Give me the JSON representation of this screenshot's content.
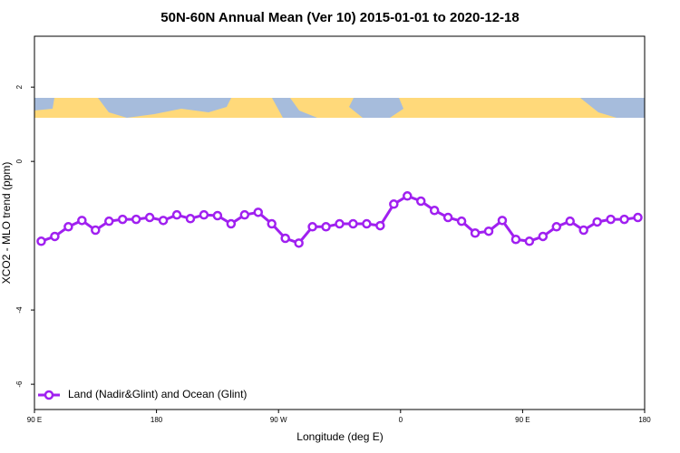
{
  "chart_data": {
    "type": "line",
    "title": "50N-60N Annual Mean (Ver 10)   2015-01-01 to 2020-12-18",
    "x_label": "Longitude (deg E)",
    "y_label": "XCO2 - MLO trend (ppm)",
    "x": [
      95,
      105,
      115,
      125,
      135,
      145,
      155,
      165,
      175,
      185,
      195,
      205,
      215,
      225,
      235,
      245,
      255,
      265,
      275,
      285,
      295,
      305,
      315,
      325,
      335,
      345,
      355,
      365,
      375,
      385,
      395,
      405,
      415,
      425,
      435,
      445,
      455,
      465,
      475,
      485,
      495,
      505,
      515,
      525,
      535
    ],
    "series": [
      {
        "name": "Land (Nadir&Glint) and Ocean (Glint)",
        "color": "#a020f0",
        "values": [
          -2.15,
          -2.02,
          -1.76,
          -1.59,
          -1.85,
          -1.61,
          -1.56,
          -1.56,
          -1.51,
          -1.59,
          -1.44,
          -1.54,
          -1.44,
          -1.46,
          -1.68,
          -1.44,
          -1.37,
          -1.68,
          -2.07,
          -2.2,
          -1.76,
          -1.76,
          -1.68,
          -1.68,
          -1.68,
          -1.73,
          -1.15,
          -0.93,
          -1.07,
          -1.32,
          -1.51,
          -1.61,
          -1.93,
          -1.88,
          -1.59,
          -2.1,
          -2.15,
          -2.02,
          -1.76,
          -1.61,
          -1.85,
          -1.63,
          -1.56,
          -1.56,
          -1.51
        ]
      }
    ],
    "xlim": [
      90,
      540
    ],
    "xticks": [
      {
        "value": 90,
        "label": "90 E"
      },
      {
        "value": 180,
        "label": "180"
      },
      {
        "value": 270,
        "label": "90 W"
      },
      {
        "value": 360,
        "label": "0"
      },
      {
        "value": 450,
        "label": "90 E"
      },
      {
        "value": 540,
        "label": "180"
      }
    ],
    "ylim": [
      -6.68,
      3.37
    ],
    "yticks": [
      -6,
      -4,
      0,
      2
    ],
    "legend": "bottom-left"
  }
}
